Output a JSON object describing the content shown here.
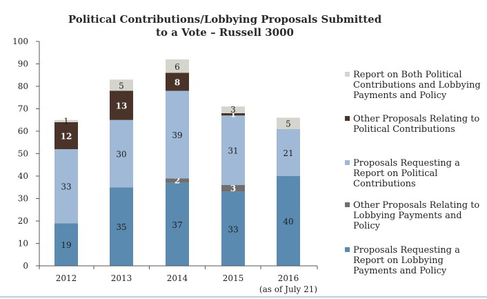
{
  "chart_data": {
    "type": "bar",
    "stacked": true,
    "title_lines": [
      "Political Contributions/Lobbying Proposals Submitted",
      "to a Vote – Russell 3000"
    ],
    "categories": [
      {
        "label": "2012",
        "sublabel": ""
      },
      {
        "label": "2013",
        "sublabel": ""
      },
      {
        "label": "2014",
        "sublabel": ""
      },
      {
        "label": "2015",
        "sublabel": ""
      },
      {
        "label": "2016",
        "sublabel": "(as of July 21)"
      }
    ],
    "ylim": [
      0,
      100
    ],
    "yticks": [
      0,
      10,
      20,
      30,
      40,
      50,
      60,
      70,
      80,
      90,
      100
    ],
    "grid": false,
    "legend_position": "right",
    "series": [
      {
        "name_lines": [
          "Proposals Requesting a",
          "Report on Lobbying",
          "Payments and Policy"
        ],
        "color": "#5b8ab0",
        "label_color": "#1e1e1e",
        "values": [
          19,
          35,
          37,
          33,
          40
        ]
      },
      {
        "name_lines": [
          "Other Proposals Relating to",
          "Lobbying Payments and",
          "Policy"
        ],
        "color": "#6f6f6f",
        "label_color": "#ffffff",
        "values": [
          0,
          0,
          2,
          3,
          0
        ]
      },
      {
        "name_lines": [
          "Proposals Requesting a",
          "Report on Political",
          "Contributions"
        ],
        "color": "#9fb9d7",
        "label_color": "#1e1e1e",
        "values": [
          33,
          30,
          39,
          31,
          21
        ]
      },
      {
        "name_lines": [
          "Other Proposals Relating to",
          "Political Contributions"
        ],
        "color": "#4a3429",
        "label_color": "#ffffff",
        "values": [
          12,
          13,
          8,
          1,
          0
        ]
      },
      {
        "name_lines": [
          "Report on Both Political",
          "Contributions and Lobbying",
          "Payments and Policy"
        ],
        "color": "#d5d4cd",
        "label_color": "#1e1e1e",
        "values": [
          1,
          5,
          6,
          3,
          5
        ]
      }
    ]
  }
}
